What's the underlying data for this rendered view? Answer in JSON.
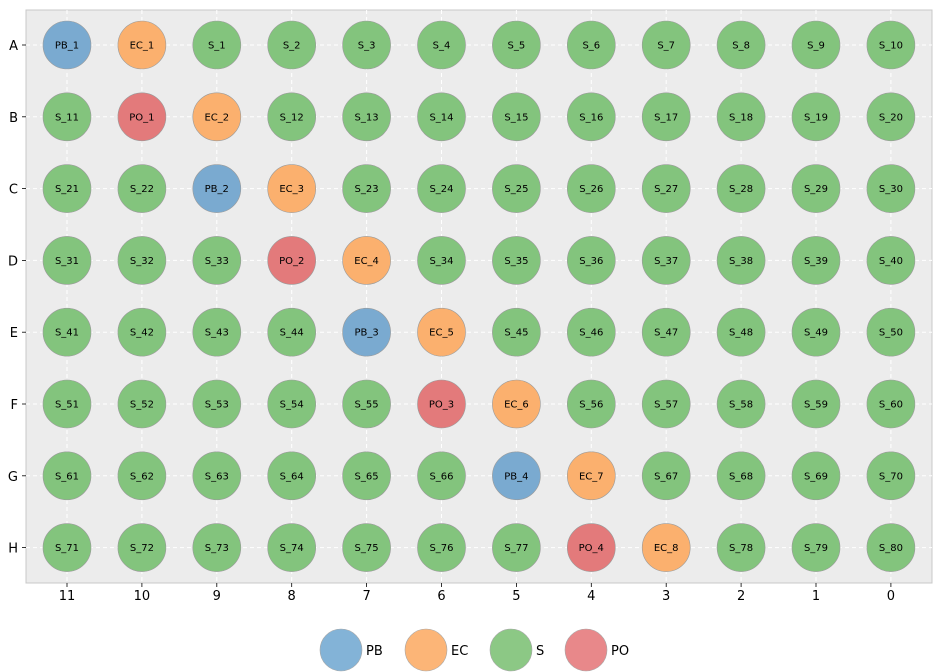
{
  "chart_data": {
    "type": "scatter",
    "columns": [
      "11",
      "10",
      "9",
      "8",
      "7",
      "6",
      "5",
      "4",
      "3",
      "2",
      "1",
      "0"
    ],
    "rows": [
      "A",
      "B",
      "C",
      "D",
      "E",
      "F",
      "G",
      "H"
    ],
    "colors": {
      "PB": "#7aaad0",
      "EC": "#fbb06e",
      "S": "#83c47d",
      "PO": "#e37a7b"
    },
    "legend": {
      "placement": "bottom-center",
      "entries": [
        {
          "name": "PB",
          "color": "#83b3d7"
        },
        {
          "name": "EC",
          "color": "#fcb577"
        },
        {
          "name": "S",
          "color": "#8cc885"
        },
        {
          "name": "PO",
          "color": "#e8888a"
        }
      ]
    },
    "grid": true,
    "wells": [
      [
        "PB_1",
        "EC_1",
        "S_1",
        "S_2",
        "S_3",
        "S_4",
        "S_5",
        "S_6",
        "S_7",
        "S_8",
        "S_9",
        "S_10"
      ],
      [
        "S_11",
        "PO_1",
        "EC_2",
        "S_12",
        "S_13",
        "S_14",
        "S_15",
        "S_16",
        "S_17",
        "S_18",
        "S_19",
        "S_20"
      ],
      [
        "S_21",
        "S_22",
        "PB_2",
        "EC_3",
        "S_23",
        "S_24",
        "S_25",
        "S_26",
        "S_27",
        "S_28",
        "S_29",
        "S_30"
      ],
      [
        "S_31",
        "S_32",
        "S_33",
        "PO_2",
        "EC_4",
        "S_34",
        "S_35",
        "S_36",
        "S_37",
        "S_38",
        "S_39",
        "S_40"
      ],
      [
        "S_41",
        "S_42",
        "S_43",
        "S_44",
        "PB_3",
        "EC_5",
        "S_45",
        "S_46",
        "S_47",
        "S_48",
        "S_49",
        "S_50"
      ],
      [
        "S_51",
        "S_52",
        "S_53",
        "S_54",
        "S_55",
        "PO_3",
        "EC_6",
        "S_56",
        "S_57",
        "S_58",
        "S_59",
        "S_60"
      ],
      [
        "S_61",
        "S_62",
        "S_63",
        "S_64",
        "S_65",
        "S_66",
        "PB_4",
        "EC_7",
        "S_67",
        "S_68",
        "S_69",
        "S_70"
      ],
      [
        "S_71",
        "S_72",
        "S_73",
        "S_74",
        "S_75",
        "S_76",
        "S_77",
        "PO_4",
        "EC_8",
        "S_78",
        "S_79",
        "S_80"
      ]
    ]
  }
}
